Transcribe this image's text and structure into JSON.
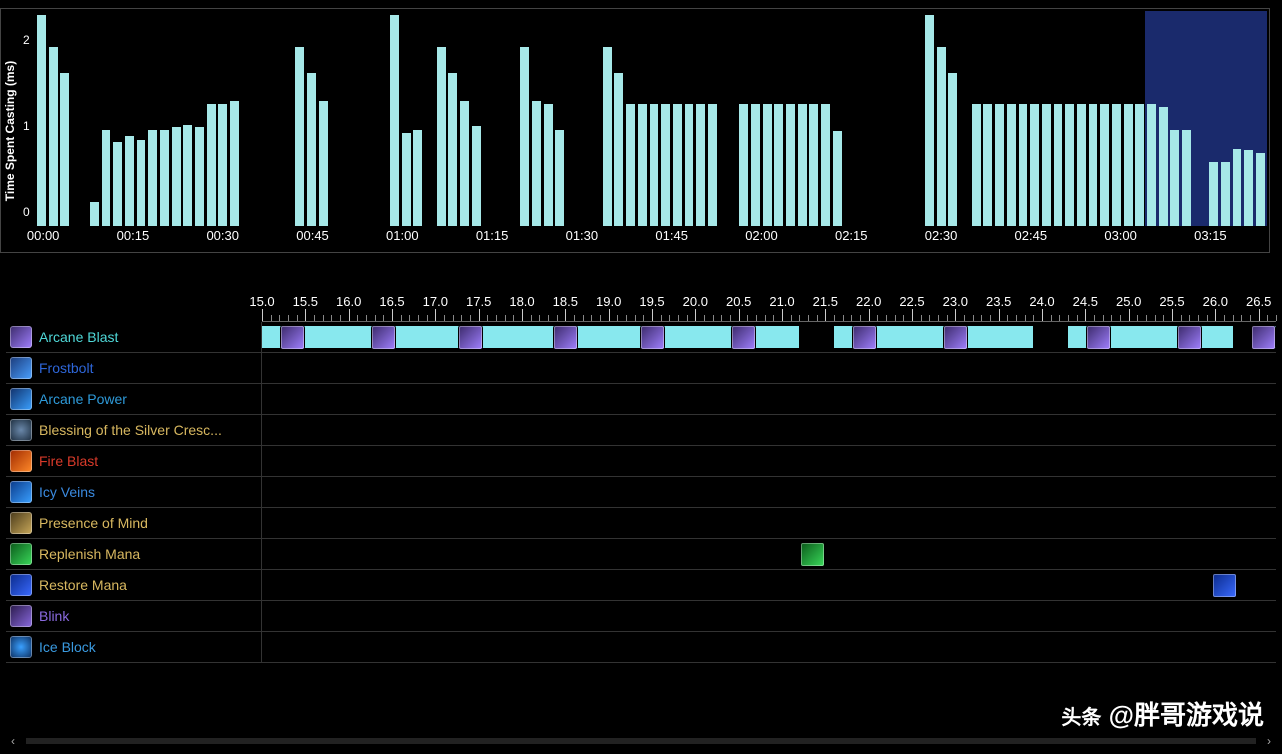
{
  "chart": {
    "type": "bar",
    "ylabel": "Time Spent Casting (ms)",
    "ylim": [
      0,
      2.5
    ],
    "yticks": [
      0,
      1,
      2
    ],
    "yticklabels": [
      "0",
      "1",
      "2"
    ],
    "bar_color": "#a6e8e8",
    "background_color": "#000000",
    "highlight_color": "#1a2a6c",
    "highlight_range_pct": [
      90.1,
      100
    ],
    "xlabels": [
      "00:00",
      "00:15",
      "00:30",
      "00:45",
      "01:00",
      "01:15",
      "01:30",
      "01:45",
      "02:00",
      "02:15",
      "02:30",
      "02:45",
      "03:00",
      "03:15"
    ],
    "xlabel_positions_pct": [
      0.5,
      7.8,
      15.1,
      22.4,
      29.7,
      37.0,
      44.3,
      51.6,
      58.9,
      66.2,
      73.5,
      80.8,
      88.1,
      95.4
    ],
    "bar_width_pct": 0.72,
    "bars": [
      {
        "x": 0.0,
        "v": 2.45
      },
      {
        "x": 0.95,
        "v": 2.08
      },
      {
        "x": 1.9,
        "v": 1.78
      },
      {
        "x": 4.3,
        "v": 0.28
      },
      {
        "x": 5.25,
        "v": 1.12
      },
      {
        "x": 6.2,
        "v": 0.98
      },
      {
        "x": 7.15,
        "v": 1.05
      },
      {
        "x": 8.1,
        "v": 1.0
      },
      {
        "x": 9.05,
        "v": 1.12
      },
      {
        "x": 10.0,
        "v": 1.12
      },
      {
        "x": 10.95,
        "v": 1.15
      },
      {
        "x": 11.9,
        "v": 1.18
      },
      {
        "x": 12.85,
        "v": 1.15
      },
      {
        "x": 13.8,
        "v": 1.42
      },
      {
        "x": 14.75,
        "v": 1.42
      },
      {
        "x": 15.7,
        "v": 1.45
      },
      {
        "x": 21.0,
        "v": 2.08
      },
      {
        "x": 21.95,
        "v": 1.78
      },
      {
        "x": 22.9,
        "v": 1.45
      },
      {
        "x": 28.7,
        "v": 2.45
      },
      {
        "x": 29.65,
        "v": 1.08
      },
      {
        "x": 30.6,
        "v": 1.12
      },
      {
        "x": 32.5,
        "v": 2.08
      },
      {
        "x": 33.45,
        "v": 1.78
      },
      {
        "x": 34.4,
        "v": 1.45
      },
      {
        "x": 35.35,
        "v": 1.16
      },
      {
        "x": 39.3,
        "v": 2.08
      },
      {
        "x": 40.25,
        "v": 1.45
      },
      {
        "x": 41.2,
        "v": 1.42
      },
      {
        "x": 42.15,
        "v": 1.12
      },
      {
        "x": 46.0,
        "v": 2.08
      },
      {
        "x": 46.95,
        "v": 1.78
      },
      {
        "x": 47.9,
        "v": 1.42
      },
      {
        "x": 48.85,
        "v": 1.42
      },
      {
        "x": 49.8,
        "v": 1.42
      },
      {
        "x": 50.75,
        "v": 1.42
      },
      {
        "x": 51.7,
        "v": 1.42
      },
      {
        "x": 52.65,
        "v": 1.42
      },
      {
        "x": 53.6,
        "v": 1.42
      },
      {
        "x": 54.55,
        "v": 1.42
      },
      {
        "x": 57.1,
        "v": 1.42
      },
      {
        "x": 58.05,
        "v": 1.42
      },
      {
        "x": 59.0,
        "v": 1.42
      },
      {
        "x": 59.95,
        "v": 1.42
      },
      {
        "x": 60.9,
        "v": 1.42
      },
      {
        "x": 61.85,
        "v": 1.42
      },
      {
        "x": 62.8,
        "v": 1.42
      },
      {
        "x": 63.75,
        "v": 1.42
      },
      {
        "x": 64.7,
        "v": 1.1
      },
      {
        "x": 72.2,
        "v": 2.45
      },
      {
        "x": 73.15,
        "v": 2.08
      },
      {
        "x": 74.1,
        "v": 1.78
      },
      {
        "x": 76.0,
        "v": 1.42
      },
      {
        "x": 76.95,
        "v": 1.42
      },
      {
        "x": 77.9,
        "v": 1.42
      },
      {
        "x": 78.85,
        "v": 1.42
      },
      {
        "x": 79.8,
        "v": 1.42
      },
      {
        "x": 80.75,
        "v": 1.42
      },
      {
        "x": 81.7,
        "v": 1.42
      },
      {
        "x": 82.65,
        "v": 1.42
      },
      {
        "x": 83.6,
        "v": 1.42
      },
      {
        "x": 84.55,
        "v": 1.42
      },
      {
        "x": 85.5,
        "v": 1.42
      },
      {
        "x": 86.45,
        "v": 1.42
      },
      {
        "x": 87.4,
        "v": 1.42
      },
      {
        "x": 88.35,
        "v": 1.42
      },
      {
        "x": 89.3,
        "v": 1.42
      },
      {
        "x": 90.25,
        "v": 1.42
      },
      {
        "x": 91.2,
        "v": 1.38
      },
      {
        "x": 92.15,
        "v": 1.12
      },
      {
        "x": 93.1,
        "v": 1.12
      },
      {
        "x": 95.3,
        "v": 0.75
      },
      {
        "x": 96.25,
        "v": 0.75
      },
      {
        "x": 97.2,
        "v": 0.9
      },
      {
        "x": 98.15,
        "v": 0.88
      },
      {
        "x": 99.1,
        "v": 0.85
      }
    ]
  },
  "timeline": {
    "range_sec": [
      15.0,
      26.7
    ],
    "major_tick_step": 0.5,
    "minor_per_major": 5,
    "cast_bar_color": "#88e8ee",
    "tracks": [
      {
        "key": "arcane_blast",
        "label": "Arcane Blast",
        "label_color": "#4fd8d8",
        "icon_bg": "linear-gradient(135deg,#3b2a6a,#a080ff)",
        "segments": [
          {
            "s": 15.0,
            "e": 21.2
          },
          {
            "s": 21.6,
            "e": 23.9
          },
          {
            "s": 24.3,
            "e": 26.2
          },
          {
            "s": 26.5,
            "e": 26.7
          }
        ],
        "events": [
          15.35,
          16.4,
          17.4,
          18.5,
          19.5,
          20.55,
          21.95,
          23.0,
          24.65,
          25.7,
          26.55
        ]
      },
      {
        "key": "frostbolt",
        "label": "Frostbolt",
        "label_color": "#2e66d9",
        "icon_bg": "linear-gradient(135deg,#1a3a7a,#4aa0ff)"
      },
      {
        "key": "arcane_power",
        "label": "Arcane Power",
        "label_color": "#2e9ad9",
        "icon_bg": "linear-gradient(135deg,#10306a,#3aa0ff)"
      },
      {
        "key": "blessing",
        "label": "Blessing of the Silver Cresc...",
        "label_color": "#d8b860",
        "icon_bg": "radial-gradient(circle,#6a88aa,#1a2a3a)"
      },
      {
        "key": "fire_blast",
        "label": "Fire Blast",
        "label_color": "#d83a2a",
        "icon_bg": "linear-gradient(135deg,#a02a00,#ff8a2a)"
      },
      {
        "key": "icy_veins",
        "label": "Icy Veins",
        "label_color": "#3a8ae0",
        "icon_bg": "linear-gradient(135deg,#0a3a8a,#3aa0ff)"
      },
      {
        "key": "presence_of_mind",
        "label": "Presence of Mind",
        "label_color": "#d8b860",
        "icon_bg": "linear-gradient(135deg,#4a3a1a,#c8a85a)"
      },
      {
        "key": "replenish_mana",
        "label": "Replenish Mana",
        "label_color": "#d8b860",
        "icon_bg": "linear-gradient(135deg,#0a5a1a,#3ad85a)",
        "events": [
          21.35
        ]
      },
      {
        "key": "restore_mana",
        "label": "Restore Mana",
        "label_color": "#d8b860",
        "icon_bg": "linear-gradient(135deg,#0a2a8a,#3a6aff)",
        "events": [
          26.1
        ]
      },
      {
        "key": "blink",
        "label": "Blink",
        "label_color": "#8a6ae0",
        "icon_bg": "linear-gradient(135deg,#2a1a4a,#8a6ae0)"
      },
      {
        "key": "ice_block",
        "label": "Ice Block",
        "label_color": "#3a9ae0",
        "icon_bg": "radial-gradient(circle,#3aa0ff,#0a2a5a)"
      }
    ]
  },
  "watermark": {
    "prefix": "头条",
    "handle": "@胖哥游戏说"
  }
}
